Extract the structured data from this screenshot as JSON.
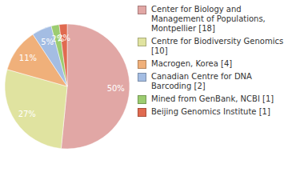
{
  "chart_data": {
    "type": "pie",
    "categories": [
      "Center for Biology and Management of Populations, Montpellier [18]",
      "Centre for Biodiversity Genomics [10]",
      "Macrogen, Korea [4]",
      "Canadian Centre for DNA Barcoding [2]",
      "Mined from GenBank, NCBI [1]",
      "Beijing Genomics Institute [1]"
    ],
    "values": [
      50,
      27,
      11,
      5,
      2,
      2
    ],
    "value_labels": [
      "50%",
      "27%",
      "11%",
      "5%",
      "2%",
      "2%"
    ],
    "colors": [
      "#e1a7a5",
      "#e0e3a0",
      "#f0b07a",
      "#a4bde3",
      "#9ccc70",
      "#e06a50"
    ],
    "data_labels": true,
    "legend": "right"
  }
}
